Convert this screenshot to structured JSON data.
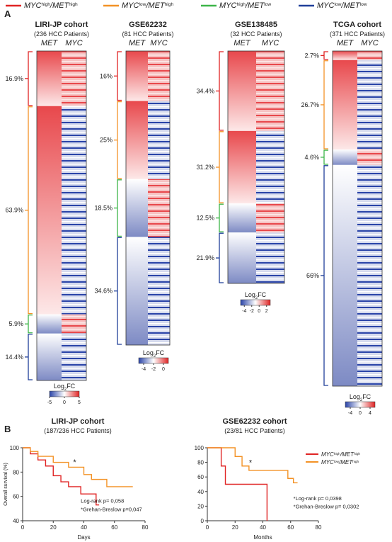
{
  "legend": [
    {
      "gene1": "MYC",
      "level1": "high",
      "gene2": "/MET",
      "level2": "high",
      "color": "#e02424"
    },
    {
      "gene1": "MYC",
      "level1": "low",
      "gene2": "/MET",
      "level2": "high",
      "color": "#f39226"
    },
    {
      "gene1": "MYC",
      "level1": "high",
      "gene2": "/MET",
      "level2": "low",
      "color": "#3db549"
    },
    {
      "gene1": "MYC",
      "level1": "low",
      "gene2": "/MET",
      "level2": "low",
      "color": "#1f3f99"
    }
  ],
  "panel_a": {
    "label": "A",
    "heatmaps": [
      {
        "title": "LIRI-JP cohort",
        "subtitle": "(236 HCC Patients)",
        "columns": [
          "MET",
          "MYC"
        ],
        "values": [
          16.9,
          63.9,
          5.9,
          14.4
        ],
        "value_labels": [
          "16.9%",
          "63.9%",
          "5.9%",
          "14.4%"
        ],
        "colorbar": {
          "label": "Log",
          "sub": "2",
          "label2": "FC",
          "lim": [
            -5,
            5
          ],
          "ticks": [
            -5,
            0,
            5
          ]
        }
      },
      {
        "title": "GSE62232",
        "subtitle": "(81 HCC Patients)",
        "columns": [
          "MET",
          "MYC"
        ],
        "values": [
          16,
          25,
          18.5,
          34.6
        ],
        "value_labels": [
          "16%",
          "25%",
          "18.5%",
          "34.6%"
        ],
        "colorbar": {
          "label": "Log",
          "sub": "2",
          "label2": "FC",
          "lim": [
            -5,
            1
          ],
          "ticks": [
            -4,
            -2,
            0
          ]
        }
      },
      {
        "title": "GSE138485",
        "subtitle": "(32 HCC Patients)",
        "columns": [
          "MET",
          "MYC"
        ],
        "values": [
          34.4,
          31.2,
          12.5,
          21.9
        ],
        "value_labels": [
          "34.4%",
          "31.2%",
          "12.5%",
          "21.9%"
        ],
        "colorbar": {
          "label": "Log",
          "sub": "2",
          "label2": "FC",
          "lim": [
            -5,
            3
          ],
          "ticks": [
            -4,
            -2,
            0,
            2
          ]
        }
      },
      {
        "title": "TCGA cohort",
        "subtitle": "(371 HCC Patients)",
        "columns": [
          "MET",
          "MYC"
        ],
        "values": [
          2.7,
          26.7,
          4.6,
          66
        ],
        "value_labels": [
          "2.7%",
          "26.7%",
          "4.6%",
          "66%"
        ],
        "colorbar": {
          "label": "Log",
          "sub": "2",
          "label2": "FC",
          "lim": [
            -6,
            6
          ],
          "ticks": [
            -4,
            0,
            4
          ]
        }
      }
    ]
  },
  "panel_b": {
    "label": "B",
    "charts": [
      {
        "type": "line",
        "title": "LIRI-JP cohort",
        "subtitle": "(187/236 HCC Patients)",
        "y_label": "Overall survival (%)",
        "x_label": "Days",
        "xlim": [
          0,
          80
        ],
        "xticks": [
          0,
          20,
          40,
          60,
          80
        ],
        "ylim": [
          40,
          100
        ],
        "yticks": [
          40,
          60,
          80,
          100
        ],
        "series": [
          {
            "legend": 0,
            "x": [
              0,
              5,
              5,
              10,
              10,
              15,
              15,
              20,
              20,
              25,
              25,
              30,
              30,
              38,
              38,
              48,
              48,
              50
            ],
            "values": [
              100,
              100,
              95,
              95,
              90,
              90,
              85,
              85,
              77,
              77,
              72,
              72,
              68,
              68,
              62,
              62,
              53,
              53
            ]
          },
          {
            "legend": 1,
            "x": [
              0,
              5,
              5,
              10,
              10,
              20,
              20,
              30,
              30,
              40,
              40,
              45,
              45,
              55,
              55,
              72
            ],
            "values": [
              100,
              100,
              97,
              97,
              93,
              93,
              88,
              88,
              84,
              84,
              78,
              78,
              74,
              74,
              68,
              68
            ]
          }
        ],
        "annotations": [
          {
            "text": "*",
            "x": 33,
            "y": 86
          },
          {
            "text": "Log-rank p= 0,058",
            "x": 38,
            "y": 55
          },
          {
            "text": "*Grehan-Breslow p=0,047",
            "x": 38,
            "y": 48
          }
        ]
      },
      {
        "type": "line",
        "title": "GSE62232 cohort",
        "subtitle": "(23/81 HCC Patients)",
        "x_label": "Months",
        "xlim": [
          0,
          80
        ],
        "xticks": [
          0,
          20,
          40,
          60,
          80
        ],
        "ylim": [
          0,
          100
        ],
        "yticks": [
          0,
          20,
          40,
          60,
          80,
          100
        ],
        "series": [
          {
            "legend": 0,
            "x": [
              0,
              10,
              10,
              13,
              13,
              43,
              43
            ],
            "values": [
              100,
              100,
              75,
              75,
              50,
              50,
              0
            ]
          },
          {
            "legend": 1,
            "x": [
              0,
              20,
              20,
              25,
              25,
              30,
              30,
              58,
              58,
              62,
              62,
              65
            ],
            "values": [
              100,
              100,
              88,
              88,
              75,
              75,
              69,
              69,
              58,
              58,
              52,
              52
            ]
          }
        ],
        "annotations": [
          {
            "text": "*",
            "x": 30,
            "y": 76
          },
          {
            "text": "*Log-rank p= 0,0398",
            "x": 62,
            "y": 28
          },
          {
            "text": "*Grehan-Breslow p= 0,0302",
            "x": 62,
            "y": 17
          }
        ]
      }
    ]
  }
}
